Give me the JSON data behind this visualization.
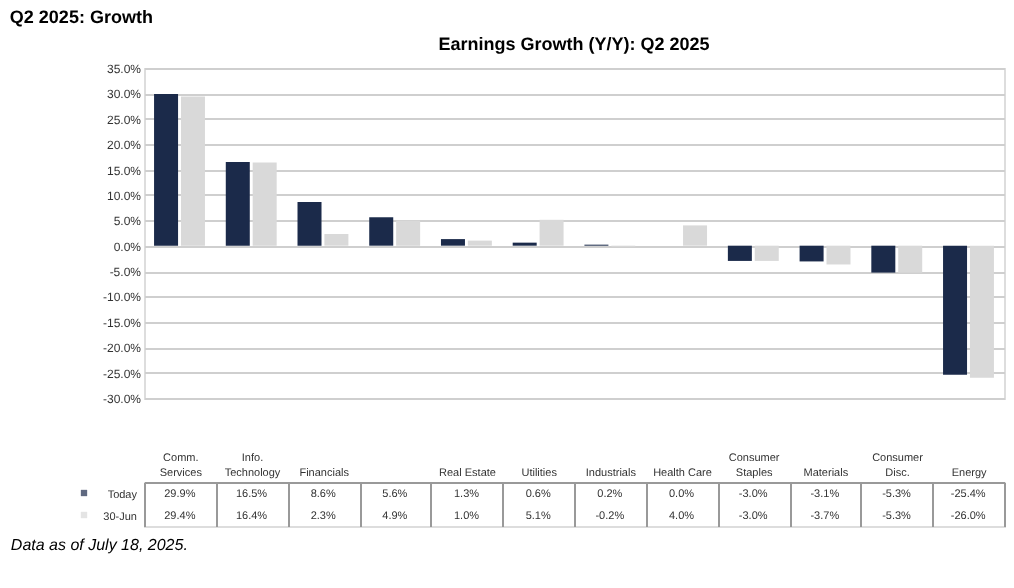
{
  "chart_data": {
    "type": "bar",
    "title": "Q2 2025: Growth",
    "subtitle": "Earnings Growth (Y/Y): Q2 2025",
    "categories": [
      "Comm. Services",
      "Info. Technology",
      "Financials",
      null,
      "Real Estate",
      "Utilities",
      "Industrials",
      "Health Care",
      "Consumer Staples",
      "Materials",
      "Consumer Disc.",
      "Energy"
    ],
    "series": [
      {
        "name": "Today",
        "color": "#1b2a4a",
        "values": [
          29.9,
          16.5,
          8.6,
          5.6,
          1.3,
          0.6,
          0.2,
          0.0,
          -3.0,
          -3.1,
          -5.3,
          -25.4
        ],
        "value_labels": [
          "29.9%",
          "16.5%",
          "8.6%",
          "5.6%",
          "1.3%",
          "0.6%",
          "0.2%",
          "0.0%",
          "-3.0%",
          "-3.1%",
          "-5.3%",
          "-25.4%"
        ]
      },
      {
        "name": "30-Jun",
        "color": "#d9d9d9",
        "values": [
          29.4,
          16.4,
          2.3,
          4.9,
          1.0,
          5.1,
          -0.2,
          4.0,
          -3.0,
          -3.7,
          -5.3,
          -26.0
        ],
        "value_labels": [
          "29.4%",
          "16.4%",
          "2.3%",
          "4.9%",
          "1.0%",
          "5.1%",
          "-0.2%",
          "4.0%",
          "-3.0%",
          "-3.7%",
          "-5.3%",
          "-26.0%"
        ]
      }
    ],
    "ylim": [
      -30,
      35
    ],
    "yticks": [
      {
        "value": -30,
        "label": "-30.0%"
      },
      {
        "value": -25,
        "label": "-25.0%"
      },
      {
        "value": -20,
        "label": "-20.0%"
      },
      {
        "value": -15,
        "label": "-15.0%"
      },
      {
        "value": -10,
        "label": "-10.0%"
      },
      {
        "value": -5,
        "label": "-5.0%"
      },
      {
        "value": 0,
        "label": "0.0%"
      },
      {
        "value": 5,
        "label": "5.0%"
      },
      {
        "value": 10,
        "label": "10.0%"
      },
      {
        "value": 15,
        "label": "15.0%"
      },
      {
        "value": 20,
        "label": "20.0%"
      },
      {
        "value": 25,
        "label": "25.0%"
      },
      {
        "value": 30,
        "label": "30.0%"
      },
      {
        "value": 35,
        "label": "35.0%"
      }
    ],
    "grid": "y",
    "legend": "bottom left",
    "annotations": [
      "Data as of July 18, 2025."
    ]
  }
}
